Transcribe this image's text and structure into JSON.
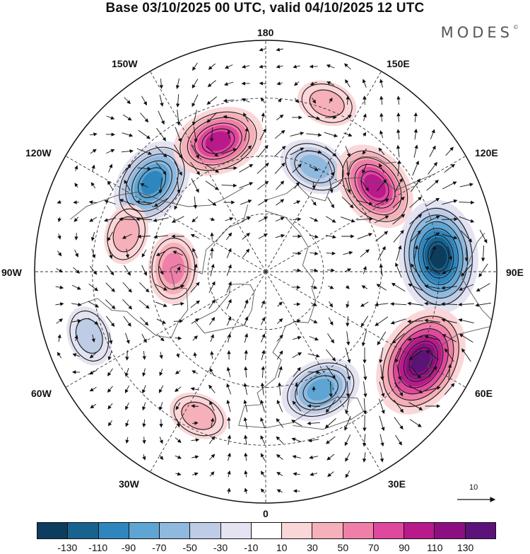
{
  "title": "Base 03/10/2025 00 UTC, valid 04/10/2025 12 UTC",
  "brand": "MODES",
  "brand_mark": "©",
  "longitude_labels": {
    "top": "180",
    "bottom": "0",
    "left": "90W",
    "right": "90E",
    "upper_left_outer": "150W",
    "upper_left_inner": "120W",
    "upper_right_outer": "150E",
    "upper_right_inner": "120E",
    "lower_left_inner": "60W",
    "lower_left_outer": "30W",
    "lower_right_inner": "60E",
    "lower_right_outer": "30E"
  },
  "wind_scale": {
    "value": "10"
  },
  "colorbar": {
    "colors": [
      "#0c3c5e",
      "#17628f",
      "#2f86bf",
      "#5ea5d3",
      "#8fb9de",
      "#bfcce6",
      "#e3e3f1",
      "#ffffff",
      "#fbd6d8",
      "#f5b0b9",
      "#ef7fa8",
      "#e0479e",
      "#b81a8c",
      "#8c0f82",
      "#5c1279"
    ],
    "ticks": [
      "-130",
      "-110",
      "-90",
      "-70",
      "-50",
      "-30",
      "-10",
      "10",
      "30",
      "50",
      "70",
      "90",
      "110",
      "130"
    ]
  },
  "anomaly_centers": [
    {
      "id": "n1",
      "sign": "neg",
      "strength": 5,
      "lon": -128,
      "lat": 40
    },
    {
      "id": "p1",
      "sign": "pos",
      "strength": 5,
      "lon": -160,
      "lat": 42
    },
    {
      "id": "n2",
      "sign": "neg",
      "strength": 3,
      "lon": 155,
      "lat": 50
    },
    {
      "id": "p2",
      "sign": "pos",
      "strength": 5,
      "lon": 128,
      "lat": 42
    },
    {
      "id": "n3",
      "sign": "neg",
      "strength": 7,
      "lon": 95,
      "lat": 30
    },
    {
      "id": "p3",
      "sign": "pos",
      "strength": 7,
      "lon": 60,
      "lat": 28
    },
    {
      "id": "n4",
      "sign": "neg",
      "strength": 4,
      "lon": 25,
      "lat": 45
    },
    {
      "id": "p4",
      "sign": "pos",
      "strength": 3,
      "lon": -92,
      "lat": 58
    },
    {
      "id": "p5",
      "sign": "pos",
      "strength": 2,
      "lon": -105,
      "lat": 40
    },
    {
      "id": "p6",
      "sign": "pos",
      "strength": 2,
      "lon": -25,
      "lat": 35
    },
    {
      "id": "n5",
      "sign": "neg",
      "strength": 2,
      "lon": -70,
      "lat": 25
    },
    {
      "id": "p7",
      "sign": "pos",
      "strength": 2,
      "lon": 160,
      "lat": 28
    }
  ]
}
